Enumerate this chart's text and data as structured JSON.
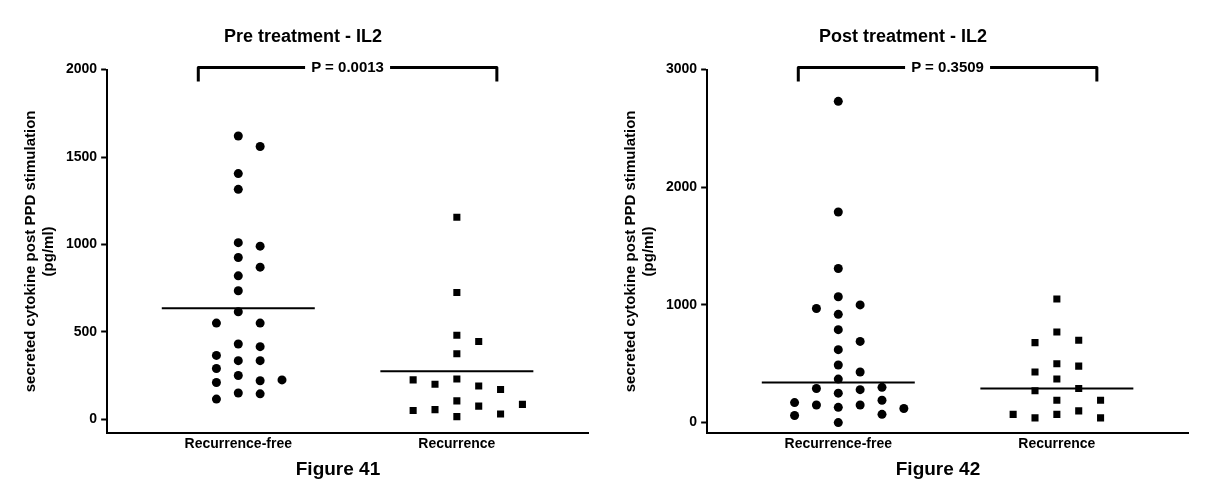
{
  "chart_data": [
    {
      "type": "scatter",
      "title": "Pre treatment - IL2",
      "ylabel": "secreted cytokine post PPD stimulation\n(pg/ml)",
      "categories": [
        "Recurrence-free",
        "Recurrence"
      ],
      "ylim": [
        -80,
        2000
      ],
      "yticks": [
        0,
        500,
        1000,
        1500,
        2000
      ],
      "grid": false,
      "legend": false,
      "annotations": [
        "P = 0.0013",
        "Figure 41"
      ],
      "series": [
        {
          "type": "scatter",
          "marker": "circle",
          "color": "#000000",
          "x": [
            "Recurrence-free",
            "Recurrence-free",
            "Recurrence-free",
            "Recurrence-free",
            "Recurrence-free",
            "Recurrence-free",
            "Recurrence-free",
            "Recurrence-free",
            "Recurrence-free",
            "Recurrence-free",
            "Recurrence-free",
            "Recurrence-free",
            "Recurrence-free",
            "Recurrence-free",
            "Recurrence-free",
            "Recurrence-free",
            "Recurrence-free",
            "Recurrence-free",
            "Recurrence-free",
            "Recurrence-free",
            "Recurrence-free",
            "Recurrence-free",
            "Recurrence-free",
            "Recurrence-free",
            "Recurrence-free",
            "Recurrence-free"
          ],
          "values": [
            1620,
            1560,
            1405,
            1315,
            1010,
            990,
            925,
            870,
            820,
            735,
            615,
            550,
            550,
            430,
            415,
            365,
            335,
            335,
            290,
            250,
            220,
            210,
            225,
            150,
            145,
            115
          ]
        },
        {
          "type": "scatter",
          "marker": "square",
          "color": "#000000",
          "x": [
            "Recurrence",
            "Recurrence",
            "Recurrence",
            "Recurrence",
            "Recurrence",
            "Recurrence",
            "Recurrence",
            "Recurrence",
            "Recurrence",
            "Recurrence",
            "Recurrence",
            "Recurrence",
            "Recurrence",
            "Recurrence",
            "Recurrence",
            "Recurrence",
            "Recurrence"
          ],
          "values": [
            1155,
            725,
            480,
            445,
            375,
            230,
            190,
            200,
            170,
            225,
            105,
            75,
            55,
            15,
            30,
            50,
            85
          ]
        }
      ],
      "ref_lines": [
        {
          "axis": "y",
          "value": 635,
          "color": "#000000"
        },
        {
          "axis": "y",
          "value": 275,
          "color": "#000000"
        }
      ]
    },
    {
      "type": "scatter",
      "title": "Post treatment - IL2",
      "ylabel": "secreted cytokine post PPD stimulation\n(pg/ml)",
      "categories": [
        "Recurrence-free",
        "Recurrence"
      ],
      "ylim": [
        -90,
        3000
      ],
      "yticks": [
        0,
        1000,
        2000,
        3000
      ],
      "grid": false,
      "legend": false,
      "annotations": [
        "P = 0.3509",
        "Figure 42"
      ],
      "series": [
        {
          "type": "scatter",
          "marker": "circle",
          "color": "#000000",
          "x": [
            "Recurrence-free",
            "Recurrence-free",
            "Recurrence-free",
            "Recurrence-free",
            "Recurrence-free",
            "Recurrence-free",
            "Recurrence-free",
            "Recurrence-free",
            "Recurrence-free",
            "Recurrence-free",
            "Recurrence-free",
            "Recurrence-free",
            "Recurrence-free",
            "Recurrence-free",
            "Recurrence-free",
            "Recurrence-free",
            "Recurrence-free",
            "Recurrence-free",
            "Recurrence-free",
            "Recurrence-free",
            "Recurrence-free",
            "Recurrence-free",
            "Recurrence-free",
            "Recurrence-free",
            "Recurrence-free",
            "Recurrence-free"
          ],
          "values": [
            2730,
            1790,
            1310,
            1070,
            1000,
            970,
            920,
            790,
            690,
            620,
            490,
            430,
            370,
            280,
            290,
            300,
            250,
            190,
            150,
            150,
            130,
            170,
            120,
            70,
            60,
            0
          ]
        },
        {
          "type": "scatter",
          "marker": "square",
          "color": "#000000",
          "x": [
            "Recurrence",
            "Recurrence",
            "Recurrence",
            "Recurrence",
            "Recurrence",
            "Recurrence",
            "Recurrence",
            "Recurrence",
            "Recurrence",
            "Recurrence",
            "Recurrence",
            "Recurrence",
            "Recurrence",
            "Recurrence",
            "Recurrence",
            "Recurrence",
            "Recurrence"
          ],
          "values": [
            1050,
            770,
            700,
            680,
            500,
            480,
            430,
            370,
            290,
            270,
            190,
            190,
            100,
            70,
            40,
            40,
            70
          ]
        }
      ],
      "ref_lines": [
        {
          "axis": "y",
          "value": 340,
          "color": "#000000"
        },
        {
          "axis": "y",
          "value": 290,
          "color": "#000000"
        }
      ]
    }
  ]
}
